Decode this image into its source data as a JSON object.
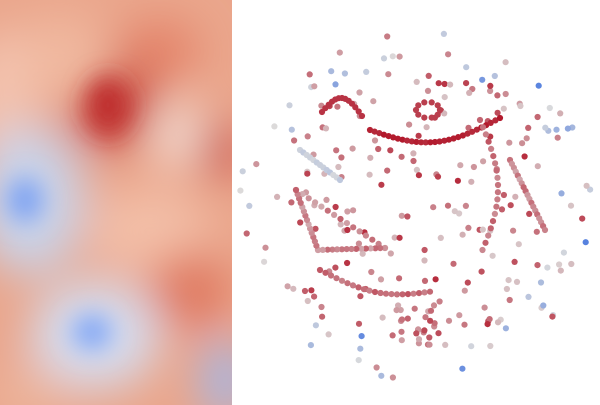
{
  "palette": {
    "low": "#3b6fe0",
    "mid": "#dcdcdc",
    "high": "#b2182b",
    "background": "#ffffff"
  },
  "panels": [
    {
      "name": "smooth-heat-field",
      "kind": "blurred-field"
    },
    {
      "name": "scatter-point-cloud",
      "kind": "scatter"
    }
  ]
}
